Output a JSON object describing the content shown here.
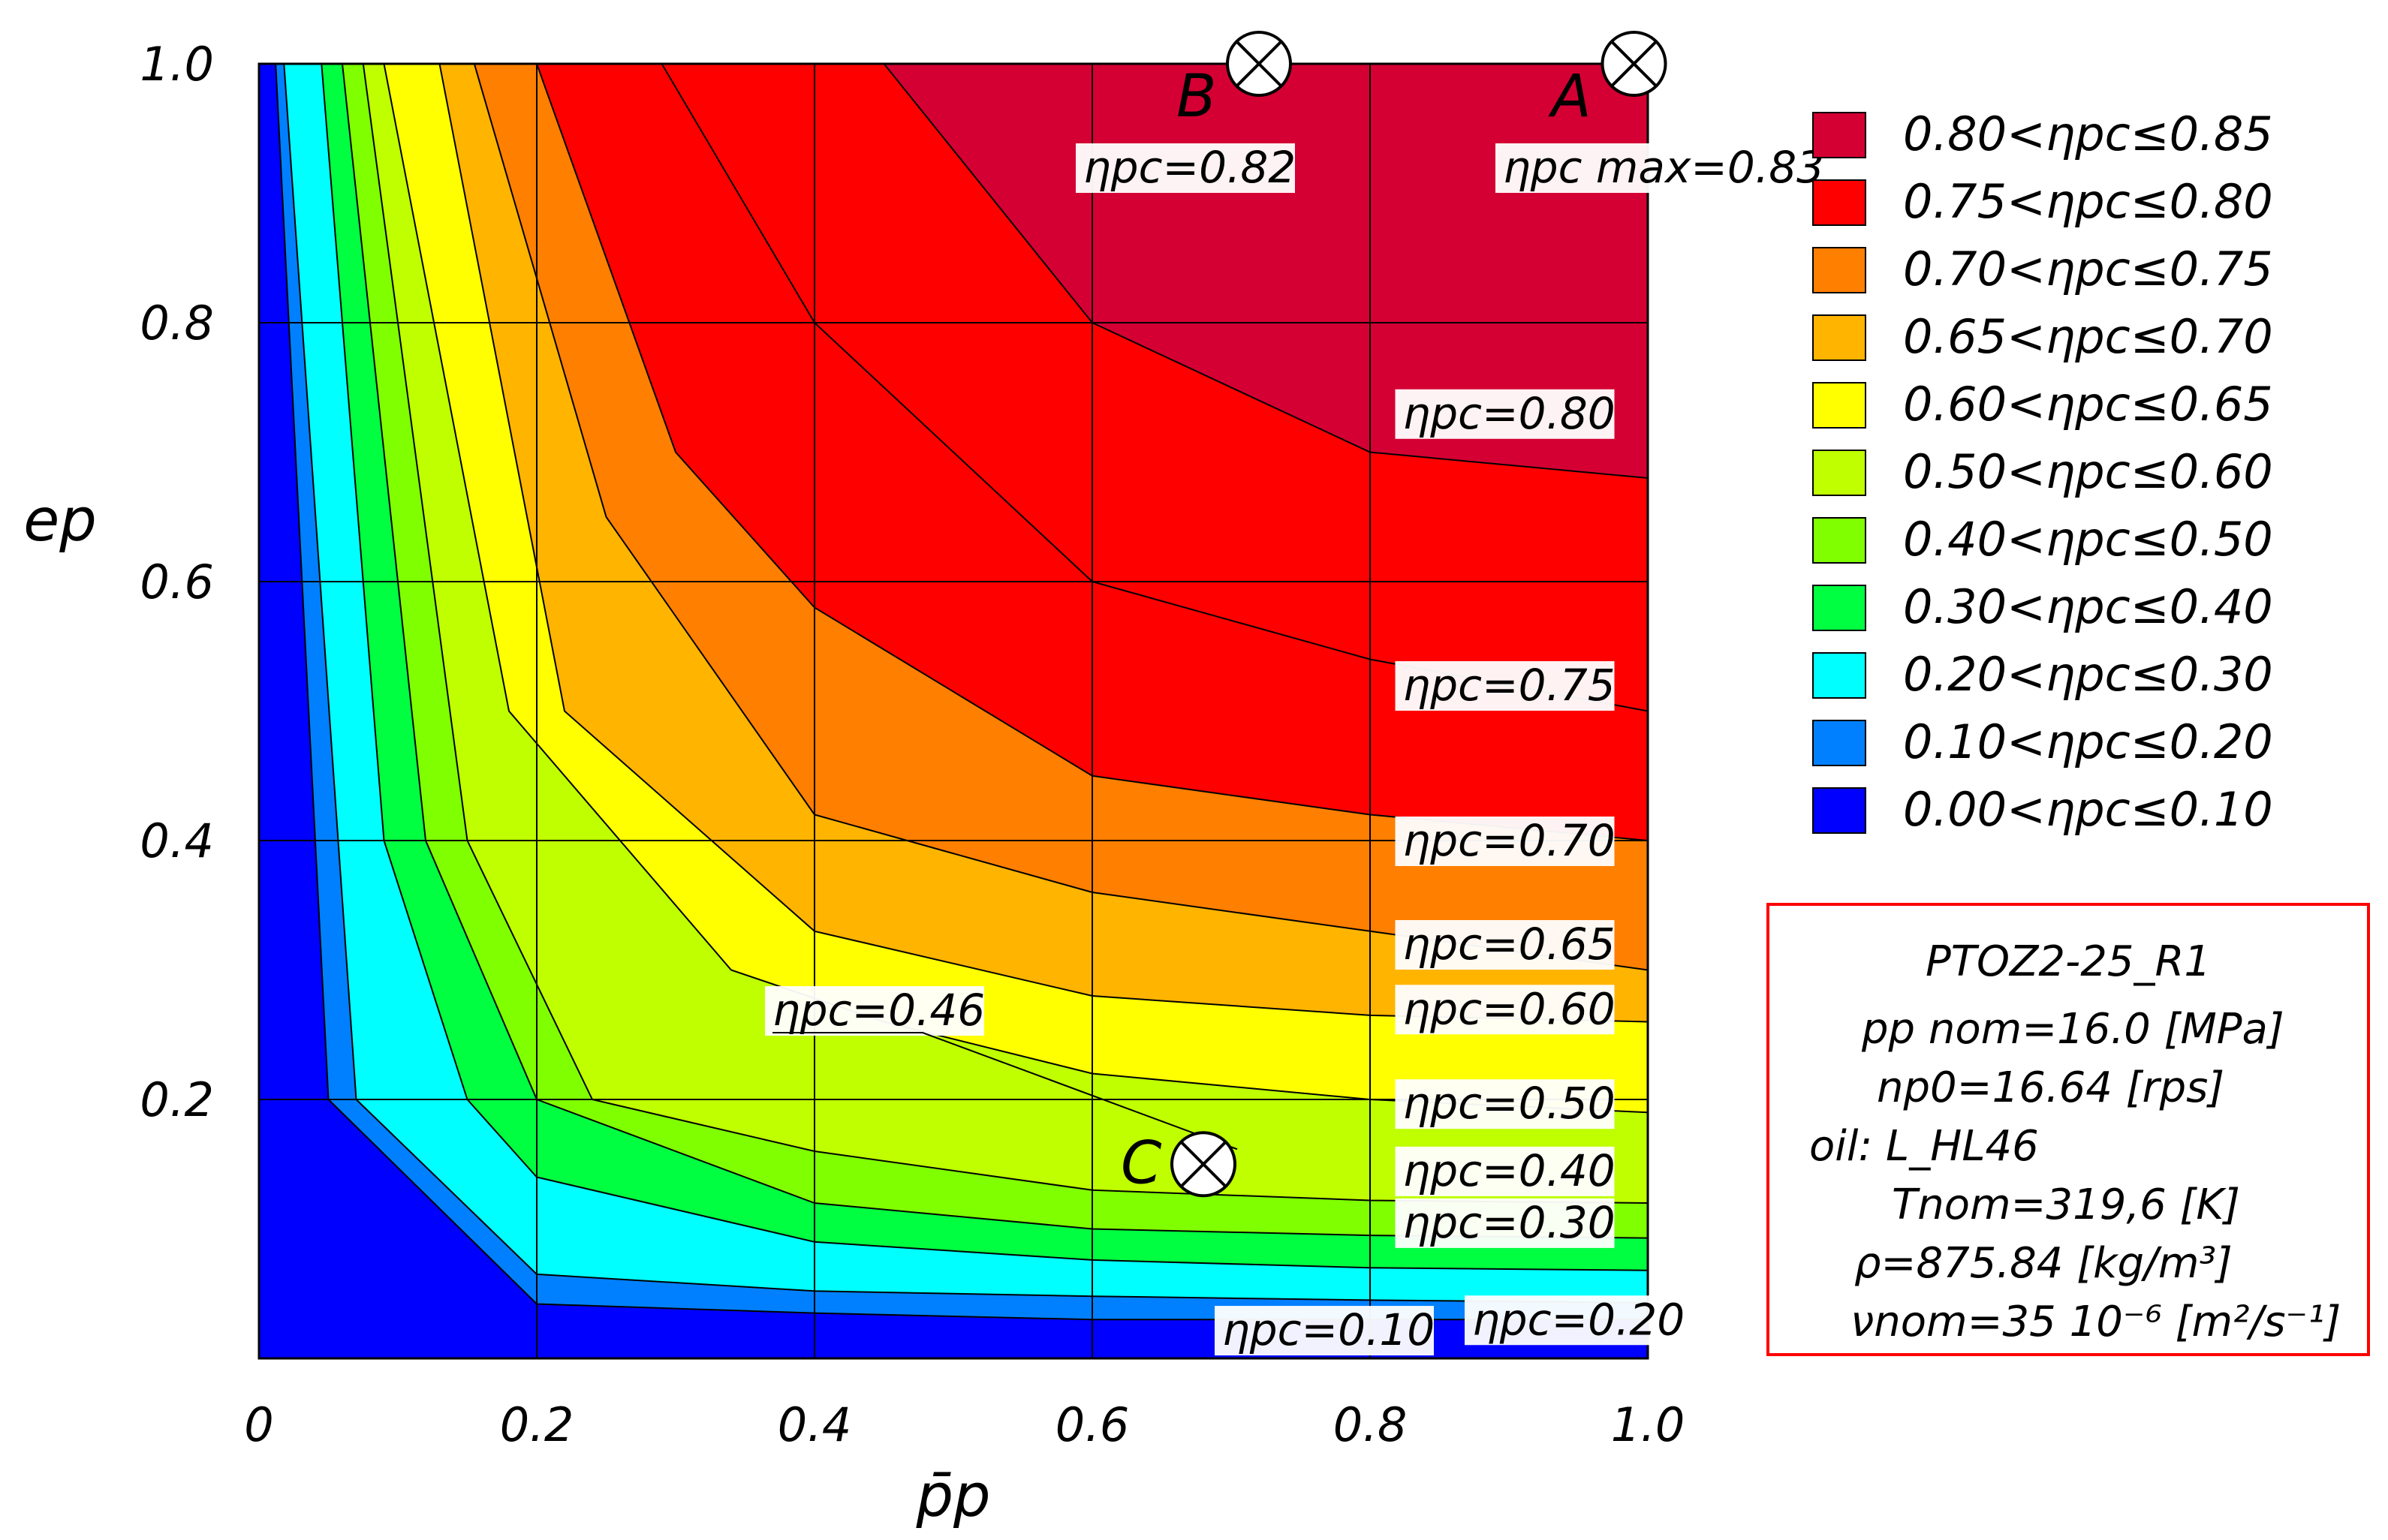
{
  "chart_data": {
    "type": "contour",
    "title": "",
    "xlabel": "p̄p",
    "ylabel": "ep",
    "xlim": [
      0,
      1
    ],
    "ylim": [
      0,
      1
    ],
    "x_ticks": [
      "0",
      "0.2",
      "0.4",
      "0.6",
      "0.8",
      "1.0"
    ],
    "y_ticks": [
      "0.2",
      "0.4",
      "0.6",
      "0.8",
      "1.0"
    ],
    "grid_x": [
      0.2,
      0.4,
      0.6,
      0.8
    ],
    "grid_y": [
      0.2,
      0.4,
      0.6,
      0.8
    ],
    "variable": "ηpc",
    "bands": [
      {
        "lo": 0.8,
        "hi": 0.85,
        "color": "#d40033",
        "label": "0.80<ηpc≤0.85"
      },
      {
        "lo": 0.75,
        "hi": 0.8,
        "color": "#ff0000",
        "label": "0.75<ηpc≤0.80"
      },
      {
        "lo": 0.7,
        "hi": 0.75,
        "color": "#ff7f00",
        "label": "0.70<ηpc≤0.75"
      },
      {
        "lo": 0.65,
        "hi": 0.7,
        "color": "#ffb400",
        "label": "0.65<ηpc≤0.70"
      },
      {
        "lo": 0.6,
        "hi": 0.65,
        "color": "#ffff00",
        "label": "0.60<ηpc≤0.65"
      },
      {
        "lo": 0.5,
        "hi": 0.6,
        "color": "#bfff00",
        "label": "0.50<ηpc≤0.60"
      },
      {
        "lo": 0.4,
        "hi": 0.5,
        "color": "#80ff00",
        "label": "0.40<ηpc≤0.50"
      },
      {
        "lo": 0.3,
        "hi": 0.4,
        "color": "#00ff40",
        "label": "0.30<ηpc≤0.40"
      },
      {
        "lo": 0.2,
        "hi": 0.3,
        "color": "#00ffff",
        "label": "0.20<ηpc≤0.30"
      },
      {
        "lo": 0.1,
        "hi": 0.2,
        "color": "#0080ff",
        "label": "0.10<ηpc≤0.20"
      },
      {
        "lo": 0.0,
        "hi": 0.1,
        "color": "#0000ff",
        "label": "0.00<ηpc≤0.10"
      }
    ],
    "contour_boundaries": [
      {
        "level": 0.1,
        "points": [
          [
            0.012,
            1.0
          ],
          [
            0.05,
            0.2
          ],
          [
            0.2,
            0.042
          ],
          [
            0.4,
            0.035
          ],
          [
            0.6,
            0.03
          ],
          [
            0.8,
            0.03
          ],
          [
            1.0,
            0.03
          ]
        ]
      },
      {
        "level": 0.2,
        "points": [
          [
            0.018,
            1.0
          ],
          [
            0.07,
            0.2
          ],
          [
            0.2,
            0.065
          ],
          [
            0.4,
            0.052
          ],
          [
            0.6,
            0.048
          ],
          [
            0.8,
            0.045
          ],
          [
            1.0,
            0.043
          ]
        ]
      },
      {
        "level": 0.3,
        "points": [
          [
            0.045,
            1.0
          ],
          [
            0.09,
            0.4
          ],
          [
            0.15,
            0.2
          ],
          [
            0.2,
            0.14
          ],
          [
            0.4,
            0.09
          ],
          [
            0.6,
            0.076
          ],
          [
            0.8,
            0.07
          ],
          [
            1.0,
            0.068
          ]
        ]
      },
      {
        "level": 0.4,
        "points": [
          [
            0.06,
            1.0
          ],
          [
            0.12,
            0.4
          ],
          [
            0.2,
            0.2
          ],
          [
            0.4,
            0.12
          ],
          [
            0.6,
            0.1
          ],
          [
            0.8,
            0.095
          ],
          [
            1.0,
            0.093
          ]
        ]
      },
      {
        "level": 0.5,
        "points": [
          [
            0.075,
            1.0
          ],
          [
            0.15,
            0.4
          ],
          [
            0.24,
            0.2
          ],
          [
            0.4,
            0.16
          ],
          [
            0.6,
            0.13
          ],
          [
            0.8,
            0.122
          ],
          [
            1.0,
            0.12
          ]
        ]
      },
      {
        "level": 0.6,
        "points": [
          [
            0.09,
            1.0
          ],
          [
            0.18,
            0.5
          ],
          [
            0.34,
            0.3
          ],
          [
            0.45,
            0.26
          ],
          [
            0.6,
            0.22
          ],
          [
            0.8,
            0.2
          ],
          [
            1.0,
            0.19
          ]
        ]
      },
      {
        "level": 0.65,
        "points": [
          [
            0.13,
            1.0
          ],
          [
            0.22,
            0.5
          ],
          [
            0.4,
            0.33
          ],
          [
            0.6,
            0.28
          ],
          [
            0.8,
            0.265
          ],
          [
            1.0,
            0.26
          ]
        ]
      },
      {
        "level": 0.7,
        "points": [
          [
            0.155,
            1.0
          ],
          [
            0.25,
            0.65
          ],
          [
            0.4,
            0.42
          ],
          [
            0.6,
            0.36
          ],
          [
            0.8,
            0.33
          ],
          [
            1.0,
            0.3
          ]
        ]
      },
      {
        "level": 0.75,
        "points": [
          [
            0.2,
            1.0
          ],
          [
            0.3,
            0.7
          ],
          [
            0.4,
            0.58
          ],
          [
            0.6,
            0.45
          ],
          [
            0.8,
            0.42
          ],
          [
            1.0,
            0.4
          ]
        ]
      },
      {
        "level": 0.8,
        "points": [
          [
            0.29,
            1.0
          ],
          [
            0.4,
            0.8
          ],
          [
            0.6,
            0.6
          ],
          [
            0.8,
            0.54
          ],
          [
            1.0,
            0.5
          ]
        ]
      },
      {
        "level": 0.82,
        "points": [
          [
            0.45,
            1.0
          ],
          [
            0.6,
            0.8
          ],
          [
            0.8,
            0.7
          ],
          [
            1.0,
            0.68
          ]
        ]
      }
    ],
    "contour_labels": [
      {
        "text": "ηpc=0.82",
        "x": 0.68,
        "y": 0.92
      },
      {
        "text": "ηpc=0.80",
        "x": 0.91,
        "y": 0.73
      },
      {
        "text": "ηpc=0.75",
        "x": 0.91,
        "y": 0.52
      },
      {
        "text": "ηpc=0.70",
        "x": 0.91,
        "y": 0.4
      },
      {
        "text": "ηpc=0.65",
        "x": 0.91,
        "y": 0.32
      },
      {
        "text": "ηpc=0.60",
        "x": 0.91,
        "y": 0.27
      },
      {
        "text": "ηpc=0.50",
        "x": 0.91,
        "y": 0.197
      },
      {
        "text": "ηpc=0.40",
        "x": 0.91,
        "y": 0.145
      },
      {
        "text": "ηpc=0.30",
        "x": 0.91,
        "y": 0.105
      },
      {
        "text": "ηpc=0.10",
        "x": 0.78,
        "y": 0.022
      },
      {
        "text": "ηpc=0.20",
        "x": 0.96,
        "y": 0.03
      }
    ],
    "max_label": {
      "text": "ηpc max=0.83",
      "x": 0.92,
      "y": 0.92
    },
    "callout": {
      "text": "ηpc=0.46",
      "x": 0.44,
      "y": 0.24
    },
    "points": [
      {
        "name": "A",
        "x": 0.99,
        "y": 1.0
      },
      {
        "name": "B",
        "x": 0.72,
        "y": 1.0
      },
      {
        "name": "C",
        "x": 0.68,
        "y": 0.15
      }
    ],
    "info_box": {
      "title": "PTOZ2-25_R1",
      "lines": [
        "pp nom=16.0 [MPa]",
        "np0=16.64 [rps]",
        "oil: L_HL46",
        "Tnom=319,6 [K]",
        "ρ=875.84 [kg/m³]",
        "νnom=35 10⁻⁶ [m²/s⁻¹]"
      ]
    }
  }
}
